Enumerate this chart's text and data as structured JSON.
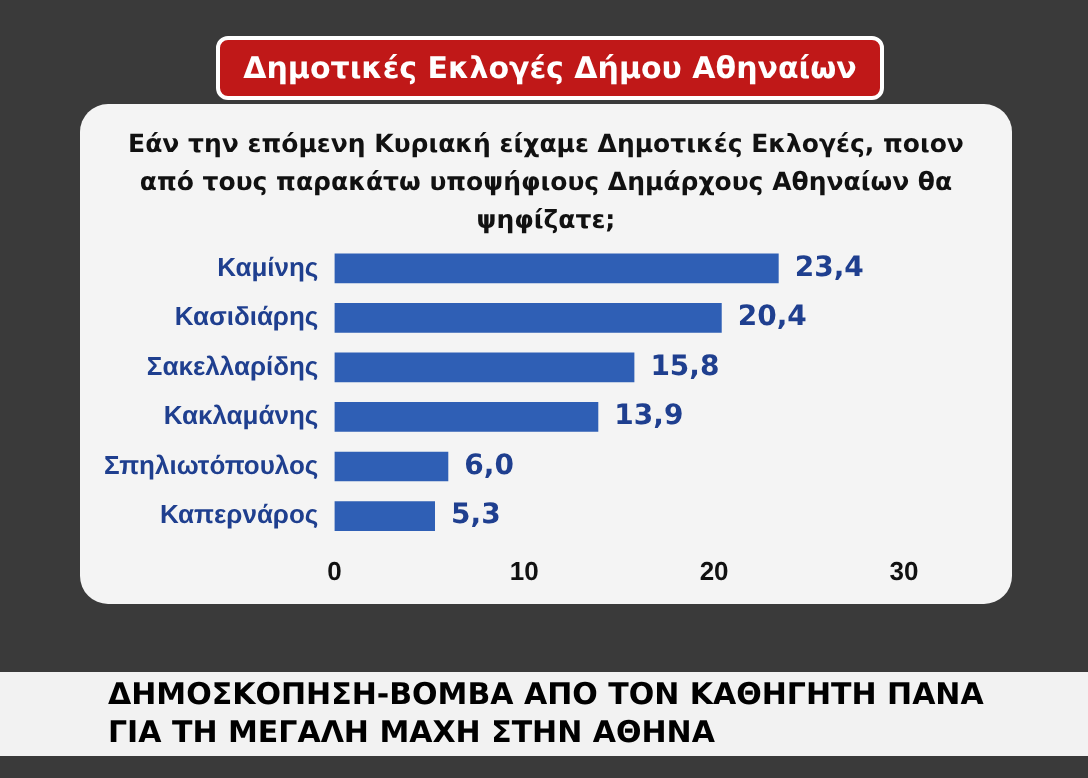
{
  "chart_data": {
    "type": "bar",
    "orientation": "horizontal",
    "title": "Δημοτικές Εκλογές Δήμου Αθηναίων",
    "subtitle": "Εάν την επόμενη Κυριακή είχαμε Δημοτικές Εκλογές, ποιον από τους παρακάτω υποψήφιους Δημάρχους Αθηναίων θα ψηφίζατε;",
    "categories": [
      "Καμίνης",
      "Κασιδιάρης",
      "Σακελλαρίδης",
      "Κακλαμάνης",
      "Σπηλιωτόπουλος",
      "Καπερνάρος"
    ],
    "values": [
      23.4,
      20.4,
      15.8,
      13.9,
      6.0,
      5.3
    ],
    "value_labels": [
      "23,4",
      "20,4",
      "15,8",
      "13,9",
      "6,0",
      "5,3"
    ],
    "color": "#2f5fb5",
    "xlim": [
      0,
      30
    ],
    "xticks": [
      0,
      10,
      20,
      30
    ],
    "annotations": [
      "ΔΗΜΟΣΚΟΠΗΣΗ-ΒΟΜΒΑ ΑΠΟ ΤΟΝ ΚΑΘΗΓΗΤΗ ΠΑΝΑ",
      "ΓΙΑ ΤΗ ΜΕΓΑΛΗ ΜΑΧΗ ΣΤΗΝ ΑΘΗΝΑ"
    ]
  }
}
